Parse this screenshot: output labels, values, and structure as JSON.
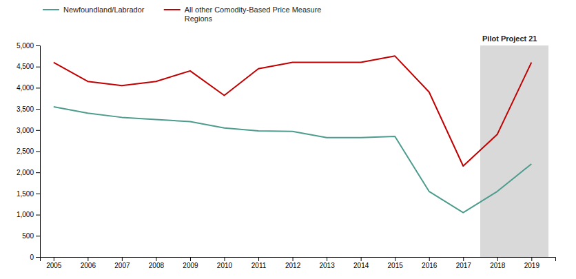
{
  "chart_data": {
    "type": "line",
    "x": [
      2005,
      2006,
      2007,
      2008,
      2009,
      2010,
      2011,
      2012,
      2013,
      2014,
      2015,
      2016,
      2017,
      2018,
      2019
    ],
    "series": [
      {
        "name": "Newfoundland/Labrador",
        "color": "#4d9c8e",
        "values": [
          3550,
          3400,
          3300,
          3250,
          3200,
          3050,
          2980,
          2970,
          2820,
          2820,
          2850,
          1550,
          1050,
          1550,
          2200
        ]
      },
      {
        "name": "All other Comodity-Based Price Measure\nRegions",
        "color": "#c00000",
        "values": [
          4600,
          4150,
          4050,
          4150,
          4400,
          3820,
          4450,
          4600,
          4600,
          4600,
          4750,
          3900,
          2150,
          2900,
          4600
        ]
      }
    ],
    "xlim": [
      2004.6,
      2019.7
    ],
    "xticks": [
      2005,
      2006,
      2007,
      2008,
      2009,
      2010,
      2011,
      2012,
      2013,
      2014,
      2015,
      2016,
      2017,
      2018,
      2019
    ],
    "ylim": [
      0,
      5000
    ],
    "yticks": [
      0,
      500,
      {
        "value": 1000,
        "label": "1,000"
      },
      {
        "value": 1500,
        "label": "1,500"
      },
      {
        "value": 2000,
        "label": "2,000"
      },
      {
        "value": 2500,
        "label": "2,500"
      },
      {
        "value": 3000,
        "label": "3,000"
      },
      {
        "value": 3500,
        "label": "3,500"
      },
      {
        "value": 4000,
        "label": "4,000"
      },
      {
        "value": 4500,
        "label": "4,500"
      },
      {
        "value": 5000,
        "label": "5,000"
      }
    ],
    "annotations": [
      {
        "text": "Pilot Project 21",
        "xlim": [
          2017.5,
          2019.5
        ],
        "color": "#d9d9d9"
      }
    ],
    "legend": "upper left",
    "grid": false
  }
}
